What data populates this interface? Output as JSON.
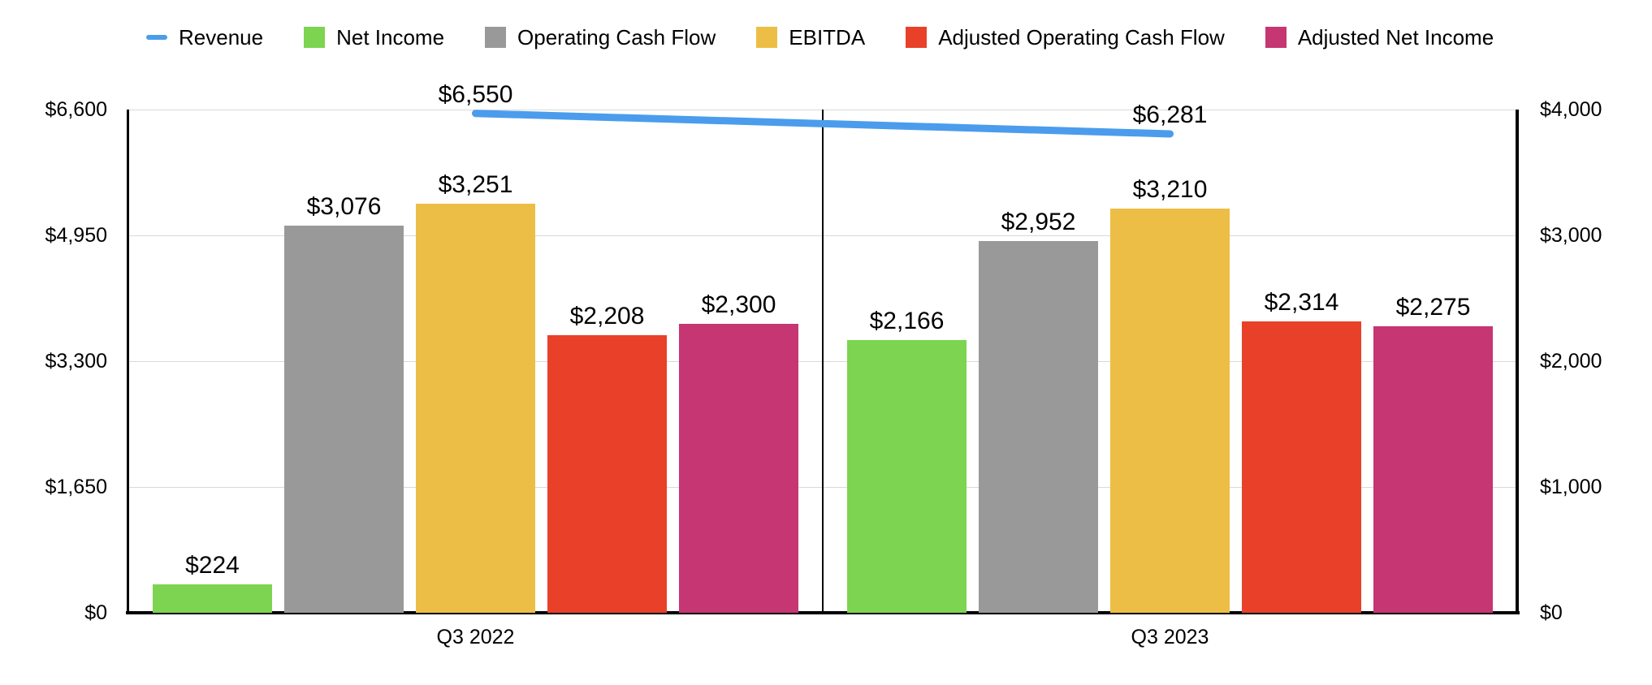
{
  "chart_data": {
    "type": "combo-bar-line",
    "categories": [
      "Q3 2022",
      "Q3 2023"
    ],
    "series": [
      {
        "name": "Revenue",
        "type": "line",
        "axis": "left",
        "color": "#4B9CEC",
        "values": [
          6550,
          6281
        ],
        "labels": [
          "$6,550",
          "$6,281"
        ]
      },
      {
        "name": "Net Income",
        "type": "bar",
        "axis": "right",
        "color": "#7CD450",
        "values": [
          224,
          2166
        ],
        "labels": [
          "$224",
          "$2,166"
        ]
      },
      {
        "name": "Operating Cash Flow",
        "type": "bar",
        "axis": "right",
        "color": "#999999",
        "values": [
          3076,
          2952
        ],
        "labels": [
          "$3,076",
          "$2,952"
        ]
      },
      {
        "name": "EBITDA",
        "type": "bar",
        "axis": "right",
        "color": "#EDBE45",
        "values": [
          3251,
          3210
        ],
        "labels": [
          "$3,251",
          "$3,210"
        ]
      },
      {
        "name": "Adjusted Operating Cash Flow",
        "type": "bar",
        "axis": "right",
        "color": "#E9402A",
        "values": [
          2208,
          2314
        ],
        "labels": [
          "$2,208",
          "$2,314"
        ]
      },
      {
        "name": "Adjusted Net Income",
        "type": "bar",
        "axis": "right",
        "color": "#C53672",
        "values": [
          2300,
          2275
        ],
        "labels": [
          "$2,300",
          "$2,275"
        ]
      }
    ],
    "left_axis": {
      "range": [
        0,
        6600
      ],
      "ticks": [
        "$6,600",
        "$4,950",
        "$3,300",
        "$1,650",
        "$0"
      ]
    },
    "right_axis": {
      "range": [
        0,
        4000
      ],
      "ticks": [
        "$4,000",
        "$3,000",
        "$2,000",
        "$1,000",
        "$0"
      ]
    },
    "grid": true,
    "legend_position": "top",
    "colors": {
      "grid": "#d9d9d9",
      "frame": "#000000",
      "text": "#000000",
      "background": "#ffffff"
    }
  }
}
